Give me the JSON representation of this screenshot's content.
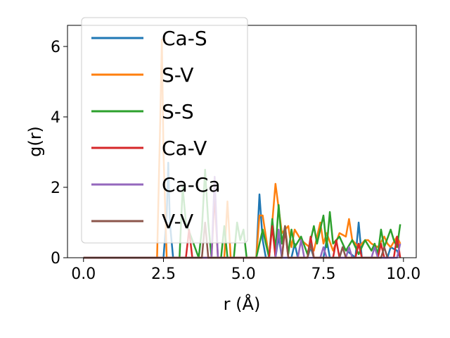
{
  "chart_data": {
    "type": "line",
    "xlabel": "r (Å)",
    "ylabel": "g(r)",
    "xlim": [
      -0.5,
      10.4
    ],
    "ylim": [
      0,
      6.6
    ],
    "xticks": [
      0.0,
      2.5,
      5.0,
      7.5,
      10.0
    ],
    "xtick_labels": [
      "0.0",
      "2.5",
      "5.0",
      "7.5",
      "10.0"
    ],
    "yticks": [
      0,
      2,
      4,
      6
    ],
    "ytick_labels": [
      "0",
      "2",
      "4",
      "6"
    ],
    "grid": false,
    "legend_position": "top-left",
    "series": [
      {
        "name": "Ca-S",
        "color": "#1f77b4",
        "x": [
          0,
          2.5,
          2.6,
          2.65,
          2.7,
          2.8,
          5.4,
          5.5,
          5.6,
          5.7,
          6.0,
          6.1,
          6.2,
          6.5,
          6.6,
          6.7,
          7.0,
          7.1,
          7.2,
          7.5,
          7.6,
          7.7,
          8.0,
          8.1,
          8.5,
          8.6,
          8.7,
          9.0,
          9.5,
          9.6,
          9.8,
          9.9
        ],
        "y": [
          0,
          0,
          1.2,
          2.7,
          1.0,
          0,
          0,
          1.8,
          0.5,
          0,
          0,
          0.6,
          0,
          0,
          0.4,
          0,
          0,
          0.3,
          0,
          0,
          0.5,
          0,
          0,
          0.3,
          0,
          1.0,
          0,
          0,
          0,
          0.3,
          0.2,
          0
        ]
      },
      {
        "name": "S-V",
        "color": "#ff7f0e",
        "x": [
          0,
          2.3,
          2.4,
          2.45,
          2.5,
          2.6,
          4.4,
          4.5,
          4.6,
          5.4,
          5.5,
          5.6,
          5.8,
          5.9,
          6.0,
          6.2,
          6.4,
          6.5,
          6.6,
          6.8,
          7.2,
          7.4,
          7.5,
          7.6,
          7.8,
          8.0,
          8.2,
          8.3,
          8.4,
          8.6,
          8.8,
          8.9,
          9.0,
          9.2,
          9.4,
          9.5,
          9.6,
          9.8,
          9.9
        ],
        "y": [
          0,
          0,
          4.0,
          6.2,
          3.0,
          0,
          0,
          1.6,
          0,
          0,
          1.2,
          1.2,
          0,
          1.0,
          2.1,
          0.7,
          0.9,
          0.3,
          0.8,
          0.5,
          0.2,
          1.0,
          0.4,
          0.7,
          0.2,
          0.7,
          0.6,
          1.1,
          0.5,
          0.3,
          0.5,
          0.5,
          0.4,
          0.3,
          0.6,
          0.4,
          0.3,
          0.6,
          0.4
        ]
      },
      {
        "name": "S-S",
        "color": "#2ca02c",
        "x": [
          0,
          3.0,
          3.1,
          3.2,
          3.6,
          3.7,
          3.8,
          3.9,
          4.0,
          4.3,
          4.4,
          4.5,
          4.7,
          4.8,
          4.9,
          5.0,
          5.1,
          5.4,
          5.6,
          5.8,
          5.9,
          6.0,
          6.1,
          6.2,
          6.3,
          6.4,
          6.5,
          6.6,
          6.8,
          7.0,
          7.2,
          7.3,
          7.5,
          7.6,
          7.7,
          7.8,
          8.0,
          8.2,
          8.4,
          8.6,
          8.8,
          9.0,
          9.1,
          9.2,
          9.3,
          9.4,
          9.6,
          9.7,
          9.8,
          9.9
        ],
        "y": [
          0,
          0,
          2.0,
          1.0,
          0,
          0.8,
          2.5,
          1.0,
          0,
          0,
          0.9,
          0,
          0,
          1.0,
          0.5,
          0.8,
          0,
          0,
          0.8,
          0,
          1.1,
          0.2,
          1.5,
          0.4,
          0.9,
          0.1,
          0.8,
          0.3,
          0.6,
          0.1,
          0.9,
          0.4,
          1.2,
          0.3,
          1.3,
          0.4,
          0.6,
          0.2,
          0.5,
          0.1,
          0.5,
          0.2,
          0.4,
          0.1,
          0.8,
          0.3,
          0.8,
          0.5,
          0.3,
          0.95
        ]
      },
      {
        "name": "Ca-V",
        "color": "#d62728",
        "x": [
          0,
          3.2,
          3.3,
          3.4,
          4.0,
          4.1,
          4.2,
          5.8,
          5.9,
          6.0,
          6.2,
          6.3,
          6.4,
          7.0,
          7.1,
          7.2,
          7.8,
          7.9,
          8.0,
          8.5,
          8.6,
          8.7,
          9.2,
          9.3,
          9.4,
          9.7,
          9.8,
          9.9
        ],
        "y": [
          0,
          0,
          0.8,
          0,
          0,
          1.8,
          0,
          0,
          0.9,
          0,
          0,
          0.8,
          0,
          0,
          0.6,
          0,
          0,
          0.5,
          0,
          0,
          0.4,
          0,
          0,
          0.4,
          0,
          0,
          0.6,
          0
        ]
      },
      {
        "name": "Ca-Ca",
        "color": "#9467bd",
        "x": [
          0,
          4.0,
          4.1,
          4.2,
          6.0,
          6.1,
          6.2,
          6.7,
          6.8,
          6.9,
          7.4,
          7.5,
          7.6,
          8.2,
          8.3,
          8.4,
          9.0,
          9.1,
          9.2,
          9.8,
          9.9
        ],
        "y": [
          0,
          0,
          2.3,
          0,
          0,
          0.8,
          0,
          0,
          0.5,
          0,
          0,
          0.3,
          0,
          0,
          0.3,
          0,
          0,
          0.3,
          0,
          0,
          0.4
        ]
      },
      {
        "name": "V-V",
        "color": "#8c564b",
        "x": [
          0,
          3.7,
          3.8,
          3.9,
          6.2,
          6.3,
          6.4,
          7.0,
          7.1,
          7.2,
          8.0,
          8.1,
          8.2,
          9.3,
          9.4,
          9.5
        ],
        "y": [
          0,
          0,
          1.0,
          0,
          0,
          0.9,
          0,
          0,
          0.4,
          0,
          0,
          0.3,
          0,
          0,
          0.3,
          0
        ]
      }
    ]
  }
}
